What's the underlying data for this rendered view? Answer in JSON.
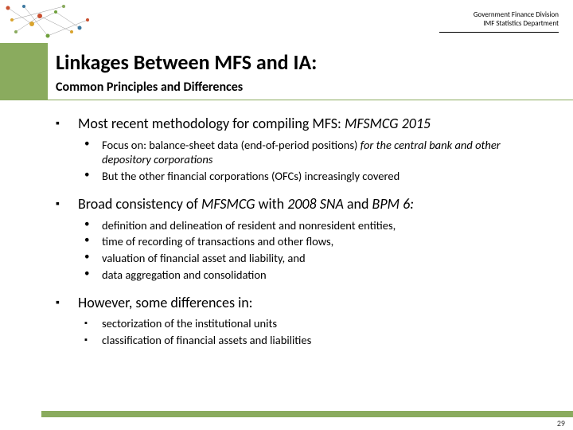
{
  "header": {
    "line1": "Government Finance Division",
    "line2": "IMF Statistics Department"
  },
  "title": "Linkages Between MFS and IA:",
  "subtitle": "Common Principles and Differences",
  "bullets": [
    {
      "text_parts": [
        "Most recent methodology for compiling MFS: ",
        "MFSMCG 2015"
      ],
      "italic_flags": [
        false,
        true
      ],
      "sub_marker": "dot",
      "subs": [
        {
          "parts": [
            "Focus on: balance-sheet data (end-of-period positions) ",
            "for the central bank and other depository corporations"
          ],
          "it": [
            false,
            true
          ]
        },
        {
          "parts": [
            "But the other financial corporations (OFCs) increasingly covered"
          ],
          "it": [
            false
          ]
        }
      ]
    },
    {
      "text_parts": [
        "Broad consistency of ",
        "MFSMCG",
        " with ",
        "2008 SNA",
        " and ",
        "BPM 6:"
      ],
      "italic_flags": [
        false,
        true,
        false,
        true,
        false,
        true
      ],
      "sub_marker": "dot",
      "subs": [
        {
          "parts": [
            "definition and delineation of resident and nonresident entities,"
          ],
          "it": [
            false
          ]
        },
        {
          "parts": [
            "time of recording of transactions and other flows,"
          ],
          "it": [
            false
          ]
        },
        {
          "parts": [
            "valuation of financial asset and liability, and"
          ],
          "it": [
            false
          ]
        },
        {
          "parts": [
            "data aggregation and consolidation"
          ],
          "it": [
            false
          ]
        }
      ]
    },
    {
      "text_parts": [
        "However, some differences in:"
      ],
      "italic_flags": [
        false
      ],
      "sub_marker": "square",
      "subs": [
        {
          "parts": [
            "sectorization of the institutional units"
          ],
          "it": [
            false
          ]
        },
        {
          "parts": [
            "classification of financial assets and liabilities"
          ],
          "it": [
            false
          ]
        }
      ]
    }
  ],
  "page_number": "29",
  "colors": {
    "accent": "#8aab5e",
    "text": "#000000",
    "bg": "#ffffff"
  }
}
